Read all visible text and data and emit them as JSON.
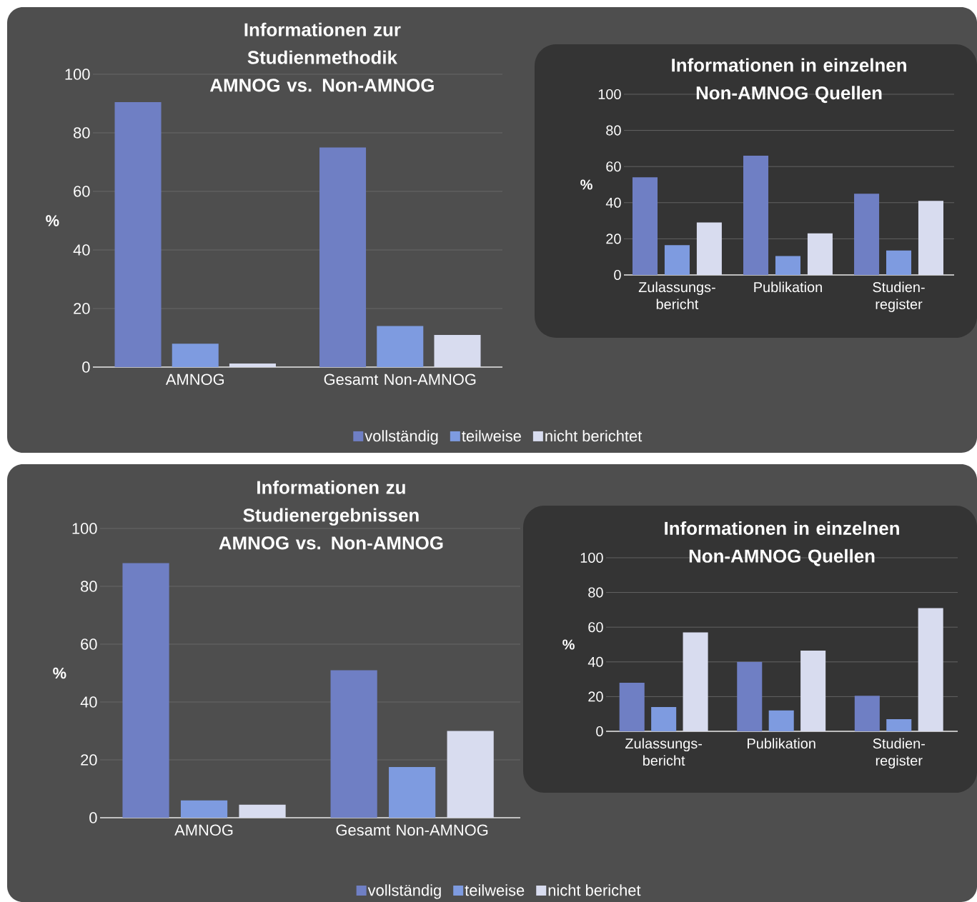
{
  "chart_data": [
    {
      "type": "bar",
      "title": "Informationen zur Studienmethodik AMNOG vs. Non-AMNOG",
      "ylabel": "%",
      "categories": [
        "AMNOG",
        "Gesamt Non-AMNOG"
      ],
      "ylim": [
        0,
        100
      ],
      "yticks": [
        0,
        20,
        40,
        60,
        80,
        100
      ],
      "grid": "y",
      "legend": "bottom",
      "series": [
        {
          "name": "vollständig",
          "color": "#6f7fc4",
          "values": [
            90.5,
            75
          ]
        },
        {
          "name": "teilweise",
          "color": "#7e9be0",
          "values": [
            8,
            14
          ]
        },
        {
          "name": "nicht berichtet",
          "color": "#d8dcef",
          "values": [
            1.2,
            11
          ]
        }
      ]
    },
    {
      "type": "bar",
      "title": "Informationen in einzelnen Non-AMNOG Quellen",
      "ylabel": "%",
      "categories": [
        "Zulassungs-bericht",
        "Publikation",
        "Studien-register"
      ],
      "ylim": [
        0,
        100
      ],
      "yticks": [
        0,
        20,
        40,
        60,
        80,
        100
      ],
      "grid": "y",
      "legend": false,
      "series": [
        {
          "color": "#6f7fc4",
          "values": [
            54,
            66,
            45
          ]
        },
        {
          "color": "#7e9be0",
          "values": [
            16.5,
            10.5,
            13.5
          ]
        },
        {
          "color": "#d8dcef",
          "values": [
            29,
            23,
            41
          ]
        }
      ]
    },
    {
      "type": "bar",
      "title": "Informationen zu Studienergebnissen AMNOG vs. Non-AMNOG",
      "ylabel": "%",
      "categories": [
        "AMNOG",
        "Gesamt Non-AMNOG"
      ],
      "ylim": [
        0,
        100
      ],
      "yticks": [
        0,
        20,
        40,
        60,
        80,
        100
      ],
      "grid": "y",
      "legend": "bottom",
      "series": [
        {
          "name": "vollständig",
          "color": "#6f7fc4",
          "values": [
            88,
            51
          ]
        },
        {
          "name": "teilweise",
          "color": "#7e9be0",
          "values": [
            6,
            17.5
          ]
        },
        {
          "name": "nicht berichet",
          "color": "#d8dcef",
          "values": [
            4.5,
            30
          ]
        }
      ]
    },
    {
      "type": "bar",
      "title": "Informationen in einzelnen Non-AMNOG Quellen",
      "ylabel": "%",
      "categories": [
        "Zulassungs-bericht",
        "Publikation",
        "Studien-register"
      ],
      "ylim": [
        0,
        100
      ],
      "yticks": [
        0,
        20,
        40,
        60,
        80,
        100
      ],
      "grid": "y",
      "legend": false,
      "series": [
        {
          "color": "#6f7fc4",
          "values": [
            28,
            40,
            20.5
          ]
        },
        {
          "color": "#7e9be0",
          "values": [
            14,
            12,
            7
          ]
        },
        {
          "color": "#d8dcef",
          "values": [
            57,
            46.5,
            71
          ]
        }
      ]
    }
  ]
}
